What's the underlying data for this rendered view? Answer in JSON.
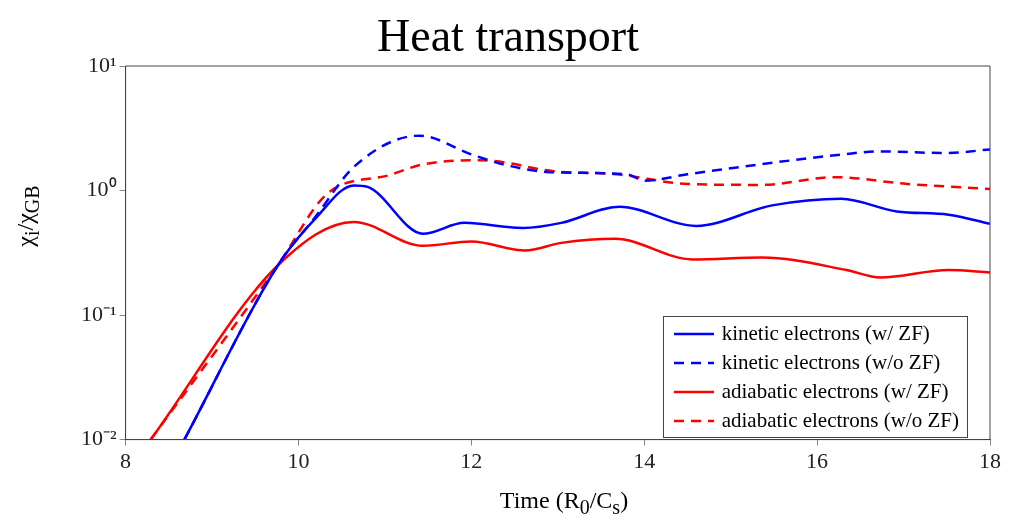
{
  "chart_data": {
    "type": "line",
    "title": "Heat transport",
    "xlabel": "Time (R$_{0}$/C$_{s}$)",
    "ylabel": "χ$_{i}$/χ$_{GB}$",
    "log": "y",
    "xlim": [
      8,
      18
    ],
    "xticks": [
      8,
      10,
      12,
      14,
      16,
      18
    ],
    "ylim": [
      0.01,
      10
    ],
    "yticks": [
      {
        "value": 0.01,
        "label": "10⁻²"
      },
      {
        "value": 0.1,
        "label": "10⁻¹"
      },
      {
        "value": 1,
        "label": "10⁰"
      },
      {
        "value": 10,
        "label": "10¹"
      }
    ],
    "grid": false,
    "legend": "bottom right",
    "marker": "none",
    "series": [
      {
        "name": "kinetic electrons (w/ ZF)",
        "color": "#0000ff",
        "line_style": "solid",
        "x": [
          8.68,
          9.76,
          10.2,
          10.64,
          10.8,
          11.44,
          11.92,
          12.6,
          13.04,
          13.71,
          14.6,
          15.48,
          16.28,
          16.92,
          17.52,
          18
        ],
        "values": [
          0.01,
          0.25,
          0.6,
          1.1,
          1.07,
          0.45,
          0.55,
          0.5,
          0.55,
          0.74,
          0.52,
          0.76,
          0.86,
          0.68,
          0.64,
          0.54
        ]
      },
      {
        "name": "kinetic electrons (w/o ZF)",
        "color": "#0000ff",
        "line_style": "dashed",
        "x": [
          8.68,
          9.76,
          10.2,
          10.65,
          11.4,
          12.0,
          12.4,
          12.95,
          13.8,
          14.0,
          14.5,
          15.36,
          16.3,
          16.7,
          17.5,
          18
        ],
        "values": [
          0.01,
          0.25,
          0.62,
          1.57,
          2.76,
          1.95,
          1.6,
          1.4,
          1.35,
          1.2,
          1.35,
          1.63,
          1.95,
          2.06,
          2.0,
          2.14
        ]
      },
      {
        "name": "adiabatic electrons (w/ ZF)",
        "color": "#ff0000",
        "line_style": "solid",
        "x": [
          8.29,
          9.76,
          10.64,
          11.44,
          12.0,
          12.62,
          13.04,
          13.66,
          14.56,
          15.36,
          16.34,
          16.73,
          17.52,
          18
        ],
        "values": [
          0.01,
          0.25,
          0.56,
          0.36,
          0.39,
          0.33,
          0.38,
          0.41,
          0.28,
          0.29,
          0.23,
          0.2,
          0.23,
          0.22
        ]
      },
      {
        "name": "adiabatic electrons (w/o ZF)",
        "color": "#ff0000",
        "line_style": "dashed",
        "x": [
          8.29,
          9.76,
          10.33,
          11.05,
          11.44,
          12.12,
          12.95,
          13.68,
          14.5,
          15.36,
          16.2,
          17.04,
          18
        ],
        "values": [
          0.01,
          0.25,
          0.94,
          1.33,
          1.62,
          1.75,
          1.43,
          1.35,
          1.13,
          1.11,
          1.28,
          1.13,
          1.03
        ]
      }
    ]
  }
}
